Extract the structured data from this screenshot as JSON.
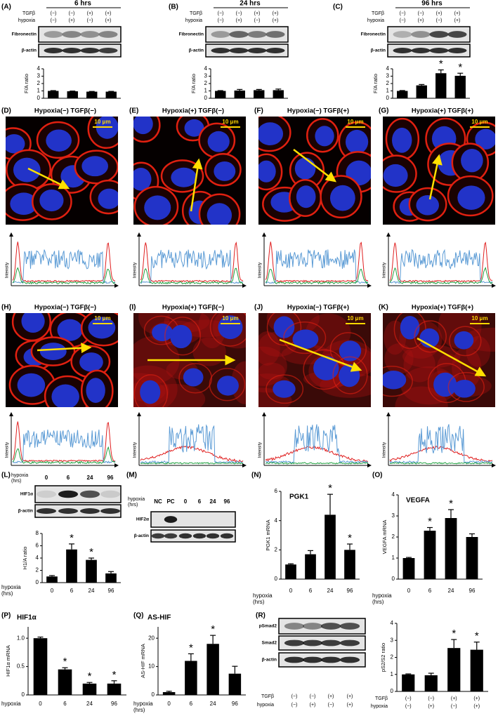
{
  "chart_data": [
    {
      "type": "bar",
      "y_label": "F/A ratio",
      "values": [
        1.0,
        0.95,
        0.9,
        0.9
      ],
      "errors": [
        0.04,
        0.03,
        0.03,
        0.04
      ],
      "color": "#000000",
      "ylim": [
        0,
        4
      ],
      "yticks": [
        0,
        1,
        2,
        3,
        4
      ]
    },
    {
      "type": "bar",
      "y_label": "F/A ratio",
      "values": [
        1.0,
        1.05,
        1.1,
        1.1
      ],
      "errors": [
        0.04,
        0.15,
        0.1,
        0.15
      ],
      "color": "#000000",
      "ylim": [
        0,
        4
      ],
      "yticks": [
        0,
        1,
        2,
        3,
        4
      ]
    },
    {
      "type": "bar",
      "y_label": "F/A ratio",
      "values": [
        1.0,
        1.75,
        3.4,
        3.05
      ],
      "errors": [
        0.05,
        0.12,
        0.45,
        0.35
      ],
      "significance": [
        null,
        null,
        "*",
        "*"
      ],
      "color": "#000000",
      "ylim": [
        0,
        4
      ],
      "yticks": [
        0,
        1,
        2,
        3,
        4
      ]
    },
    {
      "type": "bar",
      "y_label": "H1/A ratio",
      "categories": [
        "0",
        "6",
        "24",
        "96"
      ],
      "x_label": [
        "hypoxia",
        "(hrs)"
      ],
      "values": [
        1.0,
        5.4,
        3.7,
        1.5
      ],
      "errors": [
        0.15,
        0.9,
        0.3,
        0.3
      ],
      "significance": [
        null,
        "*",
        "*",
        null
      ],
      "color": "#000000",
      "ylim": [
        0,
        8
      ],
      "yticks": [
        0,
        2,
        4,
        6,
        8
      ]
    },
    {
      "type": "bar",
      "panel": "(N)",
      "title": "PGK1",
      "y_label": "PGK1 mRNA",
      "categories": [
        "0",
        "6",
        "24",
        "96"
      ],
      "x_label": [
        "hypoxia",
        "(hrs)"
      ],
      "values": [
        1.0,
        1.7,
        4.4,
        2.0
      ],
      "errors": [
        0.05,
        0.25,
        1.4,
        0.4
      ],
      "significance": [
        null,
        null,
        "*",
        "*"
      ],
      "color": "#000000",
      "ylim": [
        0,
        6
      ],
      "yticks": [
        0,
        2,
        4,
        6
      ]
    },
    {
      "type": "bar",
      "panel": "(O)",
      "title": "VEGFA",
      "y_label": "VEGFA mRNA",
      "categories": [
        "0",
        "6",
        "24",
        "96"
      ],
      "x_label": [
        "hypoxia",
        "(hrs)"
      ],
      "values": [
        1.0,
        2.3,
        2.9,
        2.0
      ],
      "errors": [
        0.03,
        0.15,
        0.4,
        0.15
      ],
      "significance": [
        null,
        "*",
        "*",
        null
      ],
      "color": "#000000",
      "ylim": [
        0,
        4
      ],
      "yticks": [
        0,
        1,
        2,
        3,
        4
      ]
    },
    {
      "type": "bar",
      "panel": "(P)",
      "title": "HIF1α",
      "y_label": "HIF1α mRNA",
      "categories": [
        "0",
        "6",
        "24",
        "96"
      ],
      "x_label": [
        "hypoxia"
      ],
      "values": [
        1.0,
        0.45,
        0.2,
        0.2
      ],
      "errors": [
        0.02,
        0.03,
        0.02,
        0.05
      ],
      "significance": [
        null,
        "*",
        "*",
        "*"
      ],
      "color": "#000000",
      "ylim": [
        0,
        1.2
      ],
      "yticks": [
        0,
        0.5,
        {
          "value": 1,
          "label": "1.0"
        }
      ]
    },
    {
      "type": "bar",
      "panel": "(Q)",
      "title": "AS-HIF",
      "y_label": "AS-HIF mRNA",
      "categories": [
        "0",
        "6",
        "24",
        "96"
      ],
      "x_label": [
        "hypoxia",
        "(hrs)"
      ],
      "values": [
        1.0,
        12,
        18,
        7.5
      ],
      "errors": [
        0.3,
        2.5,
        3,
        2.6
      ],
      "significance": [
        null,
        "*",
        "*",
        null
      ],
      "color": "#000000",
      "ylim": [
        0,
        24
      ],
      "yticks": [
        0,
        10,
        20
      ]
    },
    {
      "type": "bar",
      "y_label": "pS2/S2 ratio",
      "values": [
        1.0,
        0.95,
        2.55,
        2.45
      ],
      "errors": [
        0.03,
        0.12,
        0.5,
        0.45
      ],
      "significance": [
        null,
        null,
        "*",
        "*"
      ],
      "conditions": [
        {
          "name": "TGFβ",
          "cells": [
            "(−)",
            "(−)",
            "(+)",
            "(+)"
          ]
        },
        {
          "name": "hypoxia",
          "cells": [
            "(−)",
            "(+)",
            "(−)",
            "(+)"
          ]
        }
      ],
      "color": "#000000",
      "ylim": [
        0,
        4
      ],
      "yticks": [
        0,
        1,
        2,
        3,
        4
      ]
    }
  ],
  "blot_panels": [
    {
      "letter": "(A)",
      "time": "6 hrs",
      "conditions": [
        {
          "name": "TGFβ",
          "cells": [
            "(−)",
            "(−)",
            "(+)",
            "(+)"
          ]
        },
        {
          "name": "hypoxia",
          "cells": [
            "(−)",
            "(+)",
            "(−)",
            "(+)"
          ]
        }
      ],
      "blots": [
        "Fibronectin",
        "β-actin"
      ]
    },
    {
      "letter": "(B)",
      "time": "24 hrs",
      "conditions": [
        {
          "name": "TGFβ",
          "cells": [
            "(−)",
            "(−)",
            "(+)",
            "(+)"
          ]
        },
        {
          "name": "hypoxia",
          "cells": [
            "(−)",
            "(+)",
            "(−)",
            "(+)"
          ]
        }
      ],
      "blots": [
        "Fibronectin",
        "β-actin"
      ]
    },
    {
      "letter": "(C)",
      "time": "96 hrs",
      "conditions": [
        {
          "name": "TGFβ",
          "cells": [
            "(−)",
            "(−)",
            "(+)",
            "(+)"
          ]
        },
        {
          "name": "hypoxia",
          "cells": [
            "(−)",
            "(+)",
            "(−)",
            "(+)"
          ]
        }
      ],
      "blots": [
        "Fibronectin",
        "β-actin"
      ]
    },
    {
      "letter": "(L)",
      "x_label": [
        "hypoxia",
        "(hrs)"
      ],
      "lanes": [
        "0",
        "6",
        "24",
        "96"
      ],
      "blots": [
        "HIF1α",
        "β-actin"
      ]
    },
    {
      "letter": "(M)",
      "x_label": [
        "hypoxia",
        "(hrs)"
      ],
      "lanes": [
        "NC",
        "PC",
        "0",
        "6",
        "24",
        "96"
      ],
      "blots": [
        "HIF2α",
        "β-actin"
      ]
    },
    {
      "letter": "(R)",
      "blots": [
        "pSmad2",
        "Smad2",
        "β-actin"
      ],
      "conditions": [
        {
          "name": "TGFβ",
          "cells": [
            "(−)",
            "(−)",
            "(+)",
            "(+)"
          ]
        },
        {
          "name": "hypoxia",
          "cells": [
            "(−)",
            "(+)",
            "(−)",
            "(+)"
          ]
        }
      ]
    }
  ],
  "image_panels": [
    {
      "letter": "(D)",
      "title": "Hypoxia(−)  TGFβ(−)",
      "scale": "10 μm",
      "profile_label": "Intensity"
    },
    {
      "letter": "(E)",
      "title": "Hypoxia(+)  TGFβ(−)",
      "scale": "10 μm",
      "profile_label": "Intensity"
    },
    {
      "letter": "(F)",
      "title": "Hypoxia(−)  TGFβ(+)",
      "scale": "10 μm",
      "profile_label": "Intensity"
    },
    {
      "letter": "(G)",
      "title": "Hypoxia(+)  TGFβ(+)",
      "scale": "10 μm",
      "profile_label": "Intensity"
    },
    {
      "letter": "(H)",
      "title": "Hypoxia(−)  TGFβ(−)",
      "scale": "10 μm",
      "profile_label": "Intensity"
    },
    {
      "letter": "(I)",
      "title": "Hypoxia(+)  TGFβ(−)",
      "scale": "10 μm",
      "profile_label": "Intensity"
    },
    {
      "letter": "(J)",
      "title": "Hypoxia(−)  TGFβ(+)",
      "scale": "10 μm",
      "profile_label": "Intensity"
    },
    {
      "letter": "(K)",
      "title": "Hypoxia(+)  TGFβ(+)",
      "scale": "10 μm",
      "profile_label": "Intensity"
    }
  ]
}
